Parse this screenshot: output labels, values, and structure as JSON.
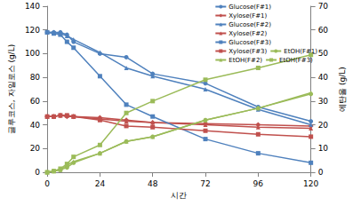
{
  "chart_data": {
    "type": "line",
    "x_label": "시간",
    "y_label": "글루코스, 자일로스 (g/L)",
    "y2_label": "에탄올 (g/L)",
    "x": [
      0,
      3,
      6,
      9,
      12,
      24,
      36,
      48,
      72,
      96,
      120
    ],
    "xlim": [
      0,
      120
    ],
    "xticks": [
      0,
      24,
      48,
      72,
      96,
      120
    ],
    "ylim": [
      0,
      140
    ],
    "yticks": [
      0,
      20,
      40,
      60,
      80,
      100,
      120,
      140
    ],
    "y2lim": [
      0,
      70
    ],
    "y2ticks": [
      0,
      10,
      20,
      30,
      40,
      50,
      60,
      70
    ],
    "grid": false,
    "legend": "upper right",
    "series": [
      {
        "name": "Glucose(F#1)",
        "color": "#4f81bd",
        "marker": "circle",
        "values": [
          118,
          118,
          118,
          116,
          110,
          100,
          97,
          83,
          75,
          55,
          43
        ]
      },
      {
        "name": "Xylose(F#1)",
        "color": "#c0504d",
        "marker": "diamond",
        "values": [
          47,
          47,
          48,
          47,
          47,
          46,
          44,
          42,
          41,
          40,
          39
        ]
      },
      {
        "name": "Glucose(F#2)",
        "color": "#4f81bd",
        "marker": "triangle",
        "values": [
          118,
          118,
          117,
          115,
          112,
          101,
          88,
          81,
          70,
          53,
          40
        ]
      },
      {
        "name": "Xylose(F#2)",
        "color": "#c0504d",
        "marker": "triangle",
        "values": [
          47,
          47,
          48,
          48,
          47,
          45,
          43,
          42,
          40,
          38,
          37
        ]
      },
      {
        "name": "Glucose(F#3)",
        "color": "#4f81bd",
        "marker": "square",
        "values": [
          118,
          117,
          116,
          110,
          105,
          81,
          57,
          47,
          28,
          16,
          8
        ]
      },
      {
        "name": "Xylose(F#3)",
        "color": "#c0504d",
        "marker": "square",
        "values": [
          47,
          47,
          48,
          48,
          47,
          44,
          39,
          38,
          35,
          32,
          30
        ]
      },
      {
        "name": "EtOH(F#1)",
        "color": "#9bbb59",
        "marker": "circle",
        "axis": "y2",
        "values": [
          0,
          0.5,
          1,
          2,
          4,
          8,
          13,
          15,
          22,
          27,
          33
        ]
      },
      {
        "name": "EtOH(F#2)",
        "color": "#9bbb59",
        "marker": "triangle",
        "axis": "y2",
        "values": [
          0,
          0.5,
          1,
          3,
          4.5,
          8,
          13,
          15,
          22,
          27,
          33.5
        ]
      },
      {
        "name": "EtOH(F#3)",
        "color": "#9bbb59",
        "marker": "square",
        "axis": "y2",
        "values": [
          0,
          0.5,
          1.5,
          3.5,
          6.5,
          11.5,
          25,
          30,
          39,
          44,
          49.5
        ]
      }
    ]
  }
}
